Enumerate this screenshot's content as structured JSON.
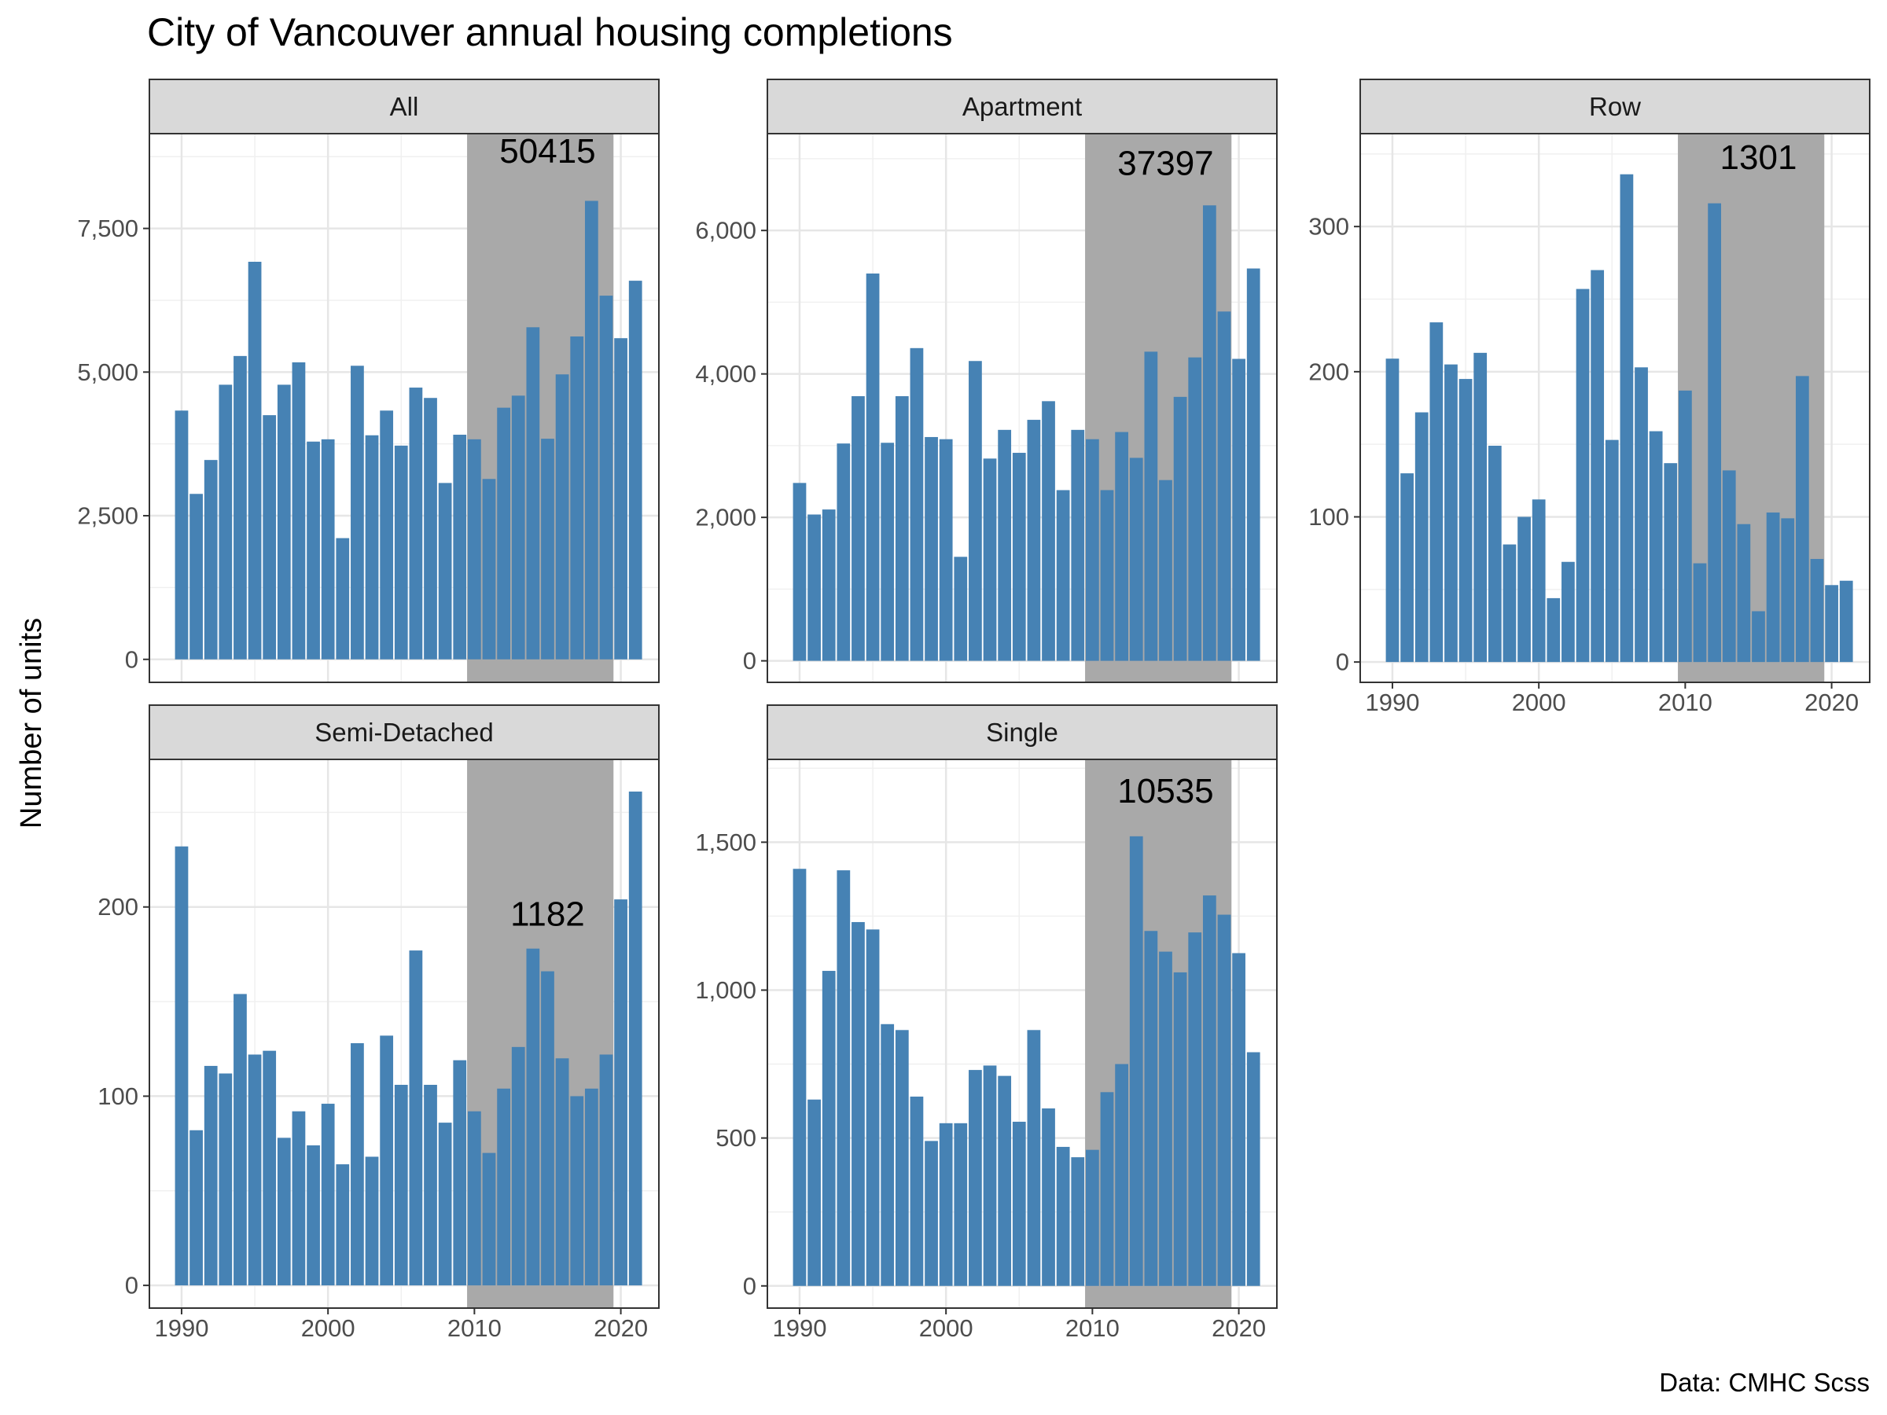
{
  "chart_data": {
    "type": "bar",
    "title": "City of Vancouver annual housing completions",
    "ylabel": "Number of units",
    "xlabel": "",
    "caption": "Data: CMHC Scss",
    "bar_color": "#4682b4",
    "highlight_color": "#a9a9a9",
    "highlight_range": [
      2010,
      2019
    ],
    "x_range": [
      1987.8,
      2022.6
    ],
    "x_ticks": [
      1990,
      2000,
      2010,
      2020
    ],
    "x_tick_labels": [
      "1990",
      "2000",
      "2010",
      "2020"
    ],
    "years": [
      1990,
      1991,
      1992,
      1993,
      1994,
      1995,
      1996,
      1997,
      1998,
      1999,
      2000,
      2001,
      2002,
      2003,
      2004,
      2005,
      2006,
      2007,
      2008,
      2009,
      2010,
      2011,
      2012,
      2013,
      2014,
      2015,
      2016,
      2017,
      2018,
      2019,
      2020,
      2021
    ],
    "panels": [
      {
        "name": "All",
        "annotation": "50415",
        "annotation_value": 8800,
        "ylim": [
          -400,
          9150
        ],
        "y_ticks": [
          0,
          2500,
          5000,
          7500
        ],
        "y_tick_labels": [
          "0",
          "2,500",
          "5,000",
          "7,500"
        ],
        "values": [
          4330,
          2880,
          3470,
          4780,
          5280,
          6920,
          4250,
          4780,
          5170,
          3790,
          3830,
          2110,
          5110,
          3900,
          4330,
          3720,
          4730,
          4550,
          3070,
          3910,
          3830,
          3140,
          4380,
          4590,
          5780,
          3840,
          4960,
          5620,
          7980,
          6330,
          5590,
          6590
        ]
      },
      {
        "name": "Apartment",
        "annotation": "37397",
        "annotation_value": 6900,
        "ylim": [
          -300,
          7350
        ],
        "y_ticks": [
          0,
          2000,
          4000,
          6000
        ],
        "y_tick_labels": [
          "0",
          "2,000",
          "4,000",
          "6,000"
        ],
        "values": [
          2480,
          2040,
          2110,
          3030,
          3690,
          5400,
          3040,
          3690,
          4360,
          3120,
          3090,
          1450,
          4180,
          2820,
          3220,
          2900,
          3360,
          3620,
          2380,
          3220,
          3090,
          2380,
          3190,
          2830,
          4310,
          2520,
          3680,
          4230,
          6350,
          4870,
          4210,
          5470
        ]
      },
      {
        "name": "Row",
        "annotation": "1301",
        "annotation_value": 346,
        "ylim": [
          -14,
          364
        ],
        "y_ticks": [
          0,
          100,
          200,
          300
        ],
        "y_tick_labels": [
          "0",
          "100",
          "200",
          "300"
        ],
        "values": [
          209,
          130,
          172,
          234,
          205,
          195,
          213,
          149,
          81,
          100,
          112,
          44,
          69,
          257,
          270,
          153,
          336,
          203,
          159,
          137,
          187,
          68,
          316,
          132,
          95,
          35,
          103,
          99,
          197,
          71,
          53,
          56
        ]
      },
      {
        "name": "Semi-Detached",
        "annotation": "1182",
        "annotation_value": 195,
        "ylim": [
          -12,
          278
        ],
        "y_ticks": [
          0,
          100,
          200
        ],
        "y_tick_labels": [
          "0",
          "100",
          "200"
        ],
        "values": [
          232,
          82,
          116,
          112,
          154,
          122,
          124,
          78,
          92,
          74,
          96,
          64,
          128,
          68,
          132,
          106,
          177,
          106,
          86,
          119,
          92,
          70,
          104,
          126,
          178,
          166,
          120,
          100,
          104,
          122,
          204,
          261
        ]
      },
      {
        "name": "Single",
        "annotation": "10535",
        "annotation_value": 1665,
        "ylim": [
          -75,
          1780
        ],
        "y_ticks": [
          0,
          500,
          1000,
          1500
        ],
        "y_tick_labels": [
          "0",
          "500",
          "1,000",
          "1,500"
        ],
        "values": [
          1410,
          630,
          1065,
          1405,
          1230,
          1205,
          885,
          865,
          640,
          490,
          550,
          550,
          730,
          745,
          710,
          555,
          865,
          600,
          470,
          435,
          460,
          655,
          750,
          1520,
          1200,
          1130,
          1060,
          1195,
          1320,
          1255,
          1125,
          790
        ]
      }
    ]
  }
}
